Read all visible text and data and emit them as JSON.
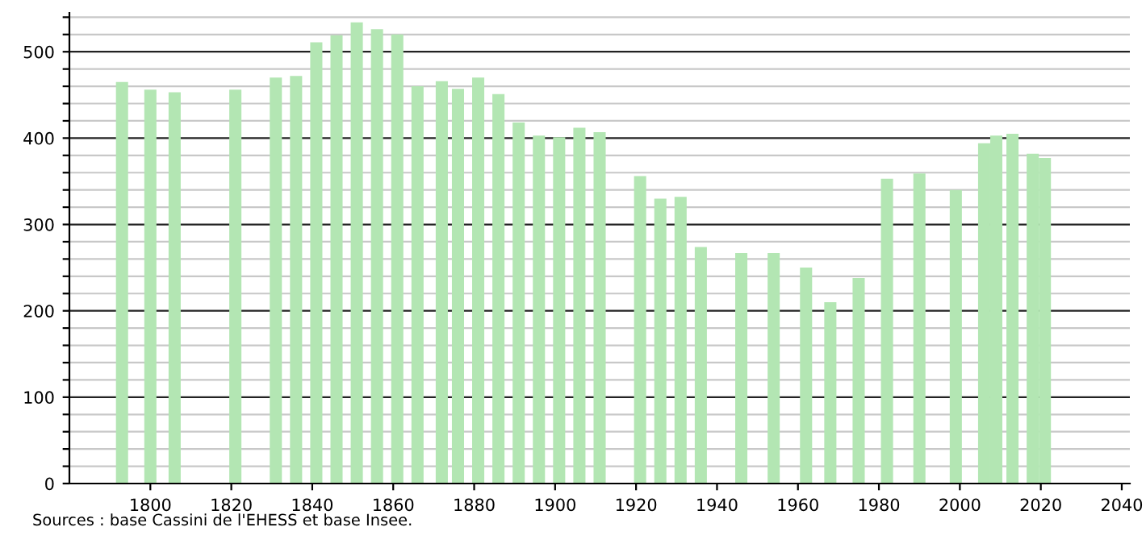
{
  "chart_data": {
    "type": "bar",
    "x": [
      1793,
      1800,
      1806,
      1821,
      1831,
      1836,
      1841,
      1846,
      1851,
      1856,
      1861,
      1866,
      1872,
      1876,
      1881,
      1886,
      1891,
      1896,
      1901,
      1906,
      1911,
      1921,
      1926,
      1931,
      1936,
      1946,
      1954,
      1962,
      1968,
      1975,
      1982,
      1990,
      1999,
      2006,
      2009,
      2013,
      2018,
      2021
    ],
    "values": [
      465,
      456,
      453,
      456,
      470,
      472,
      511,
      519,
      534,
      526,
      520,
      460,
      466,
      457,
      470,
      451,
      418,
      403,
      401,
      412,
      407,
      356,
      330,
      332,
      274,
      267,
      267,
      250,
      210,
      238,
      353,
      359,
      340,
      394,
      403,
      405,
      382,
      377
    ],
    "color": "#b3e6b3",
    "xlim": [
      1780,
      2042
    ],
    "xticks": [
      1800,
      1820,
      1840,
      1860,
      1880,
      1900,
      1920,
      1940,
      1960,
      1980,
      2000,
      2020,
      2040
    ],
    "ylim": [
      0,
      545
    ],
    "yticks": [
      0,
      {
        "value": 20,
        "label": null
      },
      {
        "value": 40,
        "label": null
      },
      {
        "value": 60,
        "label": null
      },
      {
        "value": 80,
        "label": null
      },
      100,
      {
        "value": 120,
        "label": null
      },
      {
        "value": 140,
        "label": null
      },
      {
        "value": 160,
        "label": null
      },
      {
        "value": 180,
        "label": null
      },
      200,
      {
        "value": 220,
        "label": null
      },
      {
        "value": 240,
        "label": null
      },
      {
        "value": 260,
        "label": null
      },
      {
        "value": 280,
        "label": null
      },
      300,
      {
        "value": 320,
        "label": null
      },
      {
        "value": 340,
        "label": null
      },
      {
        "value": 360,
        "label": null
      },
      {
        "value": 380,
        "label": null
      },
      400,
      {
        "value": 420,
        "label": null
      },
      {
        "value": 440,
        "label": null
      },
      {
        "value": 460,
        "label": null
      },
      {
        "value": 480,
        "label": null
      },
      500,
      {
        "value": 520,
        "label": null
      },
      {
        "value": 540,
        "label": null
      }
    ],
    "grid": "y",
    "annotations": [
      "Sources : base Cassini de l'EHESS et base Insee."
    ]
  }
}
